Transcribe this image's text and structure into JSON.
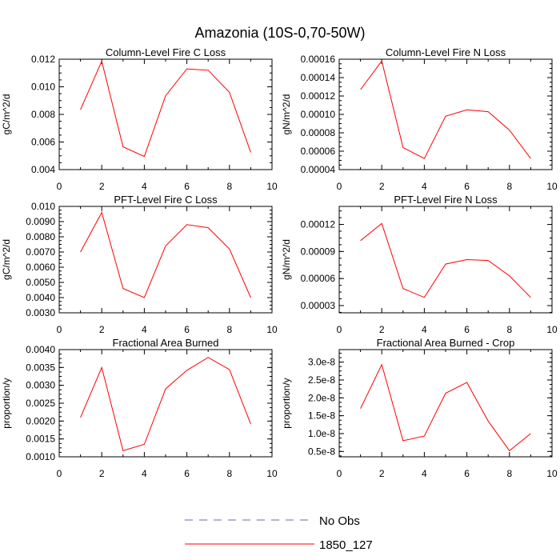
{
  "title": "Amazonia (10S-0,70-50W)",
  "colors": {
    "series": "#ff0000",
    "obs": "#6a6aa0",
    "axis": "#000000"
  },
  "legend": [
    {
      "label": "No Obs",
      "style": "dashed"
    },
    {
      "label": "1850_127",
      "style": "solid"
    }
  ],
  "chart_data": [
    {
      "type": "line",
      "title": "Column-Level Fire C Loss",
      "ylabel": "gC/m^2/d",
      "xlim": [
        0,
        10
      ],
      "ylim": [
        0.004,
        0.012
      ],
      "xticks": [
        "0",
        "2",
        "4",
        "6",
        "8",
        "10"
      ],
      "yticks": [
        {
          "v": 0.004,
          "label": "0.004"
        },
        {
          "v": 0.006,
          "label": "0.006"
        },
        {
          "v": 0.008,
          "label": "0.008"
        },
        {
          "v": 0.01,
          "label": "0.010"
        },
        {
          "v": 0.012,
          "label": "0.012"
        }
      ],
      "series": [
        {
          "name": "1850_127",
          "x": [
            1,
            2,
            3,
            4,
            5,
            6,
            7,
            8,
            9
          ],
          "y": [
            0.00835,
            0.01185,
            0.00565,
            0.00495,
            0.00935,
            0.0113,
            0.0112,
            0.0096,
            0.00525
          ]
        }
      ]
    },
    {
      "type": "line",
      "title": "Column-Level Fire N Loss",
      "ylabel": "gN/m^2/d",
      "xlim": [
        0,
        10
      ],
      "ylim": [
        4e-05,
        0.00016
      ],
      "xticks": [
        "0",
        "2",
        "4",
        "6",
        "8",
        "10"
      ],
      "yticks": [
        {
          "v": 4e-05,
          "label": "0.00004"
        },
        {
          "v": 6e-05,
          "label": "0.00006"
        },
        {
          "v": 8e-05,
          "label": "0.00008"
        },
        {
          "v": 0.0001,
          "label": "0.00010"
        },
        {
          "v": 0.00012,
          "label": "0.00012"
        },
        {
          "v": 0.00014,
          "label": "0.00014"
        },
        {
          "v": 0.00016,
          "label": "0.00016"
        }
      ],
      "series": [
        {
          "name": "1850_127",
          "x": [
            1,
            2,
            3,
            4,
            5,
            6,
            7,
            8,
            9
          ],
          "y": [
            0.000127,
            0.000158,
            6.4e-05,
            5.2e-05,
            9.8e-05,
            0.000105,
            0.000103,
            8.3e-05,
            5.2e-05
          ]
        }
      ]
    },
    {
      "type": "line",
      "title": "PFT-Level Fire C Loss",
      "ylabel": "gC/m^2/d",
      "xlim": [
        0,
        10
      ],
      "ylim": [
        0.003,
        0.01
      ],
      "xticks": [
        "0",
        "2",
        "4",
        "6",
        "8",
        "10"
      ],
      "yticks": [
        {
          "v": 0.003,
          "label": "0.0030"
        },
        {
          "v": 0.004,
          "label": "0.0040"
        },
        {
          "v": 0.005,
          "label": "0.0050"
        },
        {
          "v": 0.006,
          "label": "0.0060"
        },
        {
          "v": 0.007,
          "label": "0.0070"
        },
        {
          "v": 0.008,
          "label": "0.0080"
        },
        {
          "v": 0.009,
          "label": "0.0090"
        },
        {
          "v": 0.01,
          "label": "0.010"
        }
      ],
      "series": [
        {
          "name": "1850_127",
          "x": [
            1,
            2,
            3,
            4,
            5,
            6,
            7,
            8,
            9
          ],
          "y": [
            0.007,
            0.0096,
            0.0046,
            0.004,
            0.0074,
            0.0088,
            0.0086,
            0.0072,
            0.004
          ]
        }
      ]
    },
    {
      "type": "line",
      "title": "PFT-Level Fire N Loss",
      "ylabel": "gN/m^2/d",
      "xlim": [
        0,
        10
      ],
      "ylim": [
        2.2e-05,
        0.00014
      ],
      "xticks": [
        "0",
        "2",
        "4",
        "6",
        "8",
        "10"
      ],
      "yticks": [
        {
          "v": 3e-05,
          "label": "0.00003"
        },
        {
          "v": 6e-05,
          "label": "0.00006"
        },
        {
          "v": 9e-05,
          "label": "0.00009"
        },
        {
          "v": 0.00012,
          "label": "0.00012"
        }
      ],
      "series": [
        {
          "name": "1850_127",
          "x": [
            1,
            2,
            3,
            4,
            5,
            6,
            7,
            8,
            9
          ],
          "y": [
            0.000102,
            0.000121,
            4.9e-05,
            3.9e-05,
            7.6e-05,
            8.1e-05,
            8e-05,
            6.3e-05,
            3.9e-05
          ]
        }
      ]
    },
    {
      "type": "line",
      "title": "Fractional Area Burned",
      "ylabel": "proportion/y",
      "xlim": [
        0,
        10
      ],
      "ylim": [
        0.001,
        0.004
      ],
      "xticks": [
        "0",
        "2",
        "4",
        "6",
        "8",
        "10"
      ],
      "yticks": [
        {
          "v": 0.001,
          "label": "0.0010"
        },
        {
          "v": 0.0015,
          "label": "0.0015"
        },
        {
          "v": 0.002,
          "label": "0.0020"
        },
        {
          "v": 0.0025,
          "label": "0.0025"
        },
        {
          "v": 0.003,
          "label": "0.0030"
        },
        {
          "v": 0.0035,
          "label": "0.0035"
        },
        {
          "v": 0.004,
          "label": "0.0040"
        }
      ],
      "series": [
        {
          "name": "1850_127",
          "x": [
            1,
            2,
            3,
            4,
            5,
            6,
            7,
            8,
            9
          ],
          "y": [
            0.0021,
            0.0035,
            0.00117,
            0.00135,
            0.0029,
            0.00342,
            0.00378,
            0.00344,
            0.00192
          ]
        }
      ]
    },
    {
      "type": "line",
      "title": "Fractional Area Burned - Crop",
      "ylabel": "proportion/y",
      "xlim": [
        0,
        10
      ],
      "ylim": [
        3.5e-09,
        3.35e-08
      ],
      "xticks": [
        "0",
        "2",
        "4",
        "6",
        "8",
        "10"
      ],
      "yticks": [
        {
          "v": 5e-09,
          "label": "0.5e-8"
        },
        {
          "v": 1e-08,
          "label": "1.0e-8"
        },
        {
          "v": 1.5e-08,
          "label": "1.5e-8"
        },
        {
          "v": 2e-08,
          "label": "2.0e-8"
        },
        {
          "v": 2.5e-08,
          "label": "2.5e-8"
        },
        {
          "v": 3e-08,
          "label": "3.0e-8"
        }
      ],
      "series": [
        {
          "name": "1850_127",
          "x": [
            1,
            2,
            3,
            4,
            5,
            6,
            7,
            8,
            9
          ],
          "y": [
            1.7e-08,
            2.93e-08,
            8e-09,
            9.3e-09,
            2.13e-08,
            2.43e-08,
            1.35e-08,
            5.2e-09,
            1e-08
          ]
        }
      ]
    }
  ]
}
